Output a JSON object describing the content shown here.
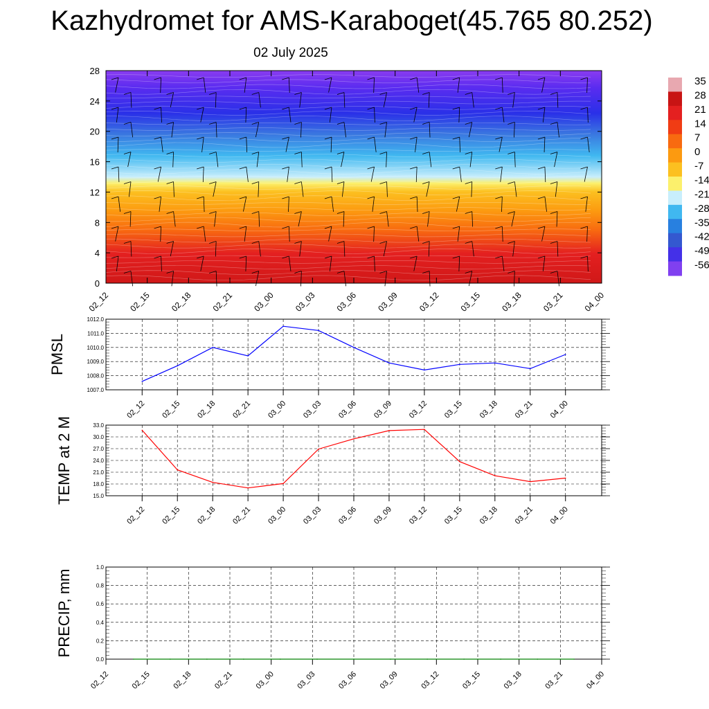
{
  "title": "Kazhydromet for AMS-Karaboget(45.765 80.252)",
  "subtitle": "02 July 2025",
  "colors": {
    "pressure_line": "#0000ff",
    "temperature_line": "#ff0000",
    "precip_line": "#008000",
    "grid": "#000000"
  },
  "chart_data": [
    {
      "type": "heatmap",
      "title": "",
      "ylabel": "",
      "ylim": [
        0,
        28
      ],
      "y_ticks": [
        "0",
        "4",
        "8",
        "12",
        "16",
        "20",
        "24",
        "28"
      ],
      "x_ticks": [
        "02_12",
        "02_15",
        "02_18",
        "02_21",
        "03_00",
        "03_03",
        "03_06",
        "03_09",
        "03_12",
        "03_15",
        "03_18",
        "03_21",
        "04_00"
      ],
      "colorbar_labels": [
        "35",
        "28",
        "21",
        "14",
        "7",
        "0",
        "-7",
        "-14",
        "-21",
        "-28",
        "-35",
        "-42",
        "-49",
        "-56"
      ],
      "colorbar_colors": [
        "#e8a8b0",
        "#c81414",
        "#e42020",
        "#f03c14",
        "#f86a10",
        "#fc9a10",
        "#fcc020",
        "#fcf06c",
        "#c8eefc",
        "#40b8f0",
        "#2880e0",
        "#3458d0",
        "#4430e8",
        "#8040f0"
      ],
      "wind_barbs": "shown"
    },
    {
      "type": "line",
      "ylabel": "PMSL",
      "x_ticks": [
        "02_12",
        "02_15",
        "02_18",
        "02_21",
        "03_00",
        "03_03",
        "03_06",
        "03_09",
        "03_12",
        "03_15",
        "03_18",
        "03_21",
        "04_00"
      ],
      "y_ticks": [
        "1007.0",
        "1008.0",
        "1009.0",
        "1010.0",
        "1011.0",
        "1012.0"
      ],
      "ylim": [
        1007,
        1012
      ],
      "series": [
        {
          "values": [
            1007.6,
            1008.7,
            1010.0,
            1009.4,
            1011.5,
            1011.2,
            1010.0,
            1008.9,
            1008.4,
            1008.8,
            1008.9,
            1008.5,
            1009.5
          ]
        }
      ],
      "grid": true
    },
    {
      "type": "line",
      "ylabel": "TEMP at 2 M",
      "x_ticks": [
        "02_12",
        "02_15",
        "02_18",
        "02_21",
        "03_00",
        "03_03",
        "03_06",
        "03_09",
        "03_12",
        "03_15",
        "03_18",
        "03_21",
        "04_00"
      ],
      "y_ticks": [
        "15.0",
        "18.0",
        "21.0",
        "24.0",
        "27.0",
        "30.0",
        "33.0"
      ],
      "ylim": [
        15,
        33
      ],
      "series": [
        {
          "values": [
            31.7,
            21.6,
            18.4,
            17.0,
            18.1,
            26.9,
            29.5,
            31.6,
            31.9,
            23.7,
            20.1,
            18.6,
            19.5
          ]
        }
      ],
      "grid": true
    },
    {
      "type": "line",
      "ylabel": "PRECIP, mm",
      "x_ticks": [
        "02_12",
        "02_15",
        "02_18",
        "02_21",
        "03_00",
        "03_03",
        "03_06",
        "03_09",
        "03_12",
        "03_15",
        "03_18",
        "03_21",
        "04_00"
      ],
      "y_ticks": [
        "0.0",
        "0.2",
        "0.4",
        "0.6",
        "0.8",
        "1.0"
      ],
      "ylim": [
        0,
        1
      ],
      "series": [
        {
          "values": [
            0,
            0,
            0,
            0,
            0,
            0,
            0,
            0,
            0,
            0,
            0,
            0,
            0
          ]
        }
      ],
      "grid": true
    }
  ]
}
